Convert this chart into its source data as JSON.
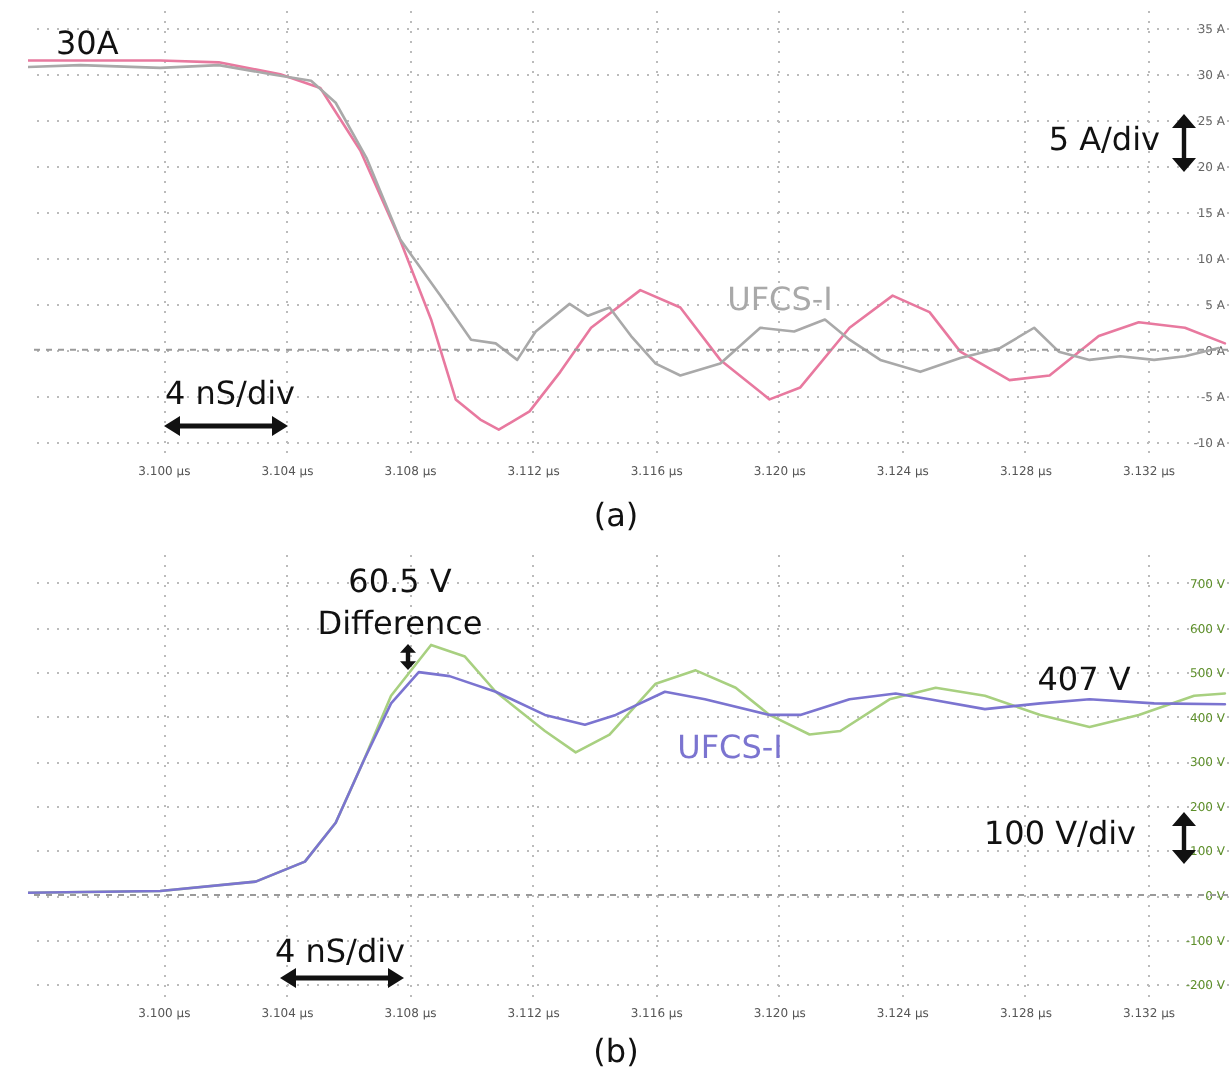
{
  "chart_data": [
    {
      "type": "line",
      "xlim": [
        3.0956,
        3.1346
      ],
      "xticks": [
        {
          "value": 3.1,
          "label": "3.100 µs"
        },
        {
          "value": 3.104,
          "label": "3.104 µs"
        },
        {
          "value": 3.108,
          "label": "3.108 µs"
        },
        {
          "value": 3.112,
          "label": "3.112 µs"
        },
        {
          "value": 3.116,
          "label": "3.116 µs"
        },
        {
          "value": 3.12,
          "label": "3.120 µs"
        },
        {
          "value": 3.124,
          "label": "3.124 µs"
        },
        {
          "value": 3.128,
          "label": "3.128 µs"
        },
        {
          "value": 3.132,
          "label": "3.132 µs"
        }
      ],
      "ylim": [
        -12,
        37
      ],
      "yticks": [
        {
          "value": -10,
          "label": "-10 A"
        },
        {
          "value": -5,
          "label": "-5 A"
        },
        {
          "value": 0,
          "label": "0 A"
        },
        {
          "value": 5,
          "label": "5 A"
        },
        {
          "value": 10,
          "label": "10 A"
        },
        {
          "value": 15,
          "label": "15 A"
        },
        {
          "value": 20,
          "label": "20 A"
        },
        {
          "value": 25,
          "label": "25 A"
        },
        {
          "value": 30,
          "label": "30 A"
        },
        {
          "value": 35,
          "label": "35 A"
        }
      ],
      "grid": true,
      "ref_lines": [
        {
          "axis": "y",
          "value": 0,
          "color": "#9a9a9a",
          "line_style": "dashed"
        }
      ],
      "annotations": [
        "30A",
        "5 A/div",
        "4 nS/div",
        "(a)"
      ],
      "series": [
        {
          "color": "#e8799f",
          "x": [
            3.0956,
            3.0973,
            3.0999,
            3.1018,
            3.1038,
            3.1051,
            3.1064,
            3.1077,
            3.1087,
            3.1095,
            3.1103,
            3.1109,
            3.1119,
            3.1129,
            3.1139,
            3.1155,
            3.1168,
            3.1181,
            3.1197,
            3.1207,
            3.1223,
            3.1237,
            3.1249,
            3.1259,
            3.1275,
            3.1288,
            3.1304,
            3.1317,
            3.1332,
            3.1345
          ],
          "values": [
            31.5,
            31.5,
            31.5,
            31.3,
            30,
            28.5,
            21.7,
            11.9,
            3.3,
            -5.4,
            -7.6,
            -8.7,
            -6.7,
            -2.4,
            2.4,
            6.5,
            4.6,
            -1.1,
            -5.4,
            -4.1,
            2.4,
            5.9,
            4.1,
            -0.2,
            -3.3,
            -2.8,
            1.5,
            3,
            2.4,
            0.7
          ]
        },
        {
          "name": "UFCS-I",
          "color": "#a9a9a9",
          "x": [
            3.0956,
            3.0973,
            3.0999,
            3.1018,
            3.1035,
            3.1048,
            3.1056,
            3.1066,
            3.1077,
            3.109,
            3.11,
            3.1108,
            3.1115,
            3.1121,
            3.1132,
            3.1138,
            3.1145,
            3.1152,
            3.116,
            3.1168,
            3.1181,
            3.1194,
            3.1205,
            3.1215,
            3.1223,
            3.1233,
            3.1246,
            3.1259,
            3.1272,
            3.1283,
            3.1291,
            3.1301,
            3.1311,
            3.1322,
            3.1332,
            3.1343
          ],
          "values": [
            30.8,
            31,
            30.7,
            31,
            30,
            29.3,
            26.9,
            20.9,
            12,
            5.9,
            1.1,
            0.7,
            -1.1,
            2,
            5,
            3.7,
            4.6,
            1.5,
            -1.5,
            -2.8,
            -1.5,
            2.4,
            2,
            3.3,
            1.1,
            -1.1,
            -2.4,
            -0.9,
            0.2,
            2.4,
            -0.2,
            -1.1,
            -0.7,
            -1.1,
            -0.7,
            0.2
          ]
        }
      ]
    },
    {
      "type": "line",
      "xlim": [
        3.0956,
        3.1346
      ],
      "xticks": [
        {
          "value": 3.1,
          "label": "3.100 µs"
        },
        {
          "value": 3.104,
          "label": "3.104 µs"
        },
        {
          "value": 3.108,
          "label": "3.108 µs"
        },
        {
          "value": 3.112,
          "label": "3.112 µs"
        },
        {
          "value": 3.116,
          "label": "3.116 µs"
        },
        {
          "value": 3.12,
          "label": "3.120 µs"
        },
        {
          "value": 3.124,
          "label": "3.124 µs"
        },
        {
          "value": 3.128,
          "label": "3.128 µs"
        },
        {
          "value": 3.132,
          "label": "3.132 µs"
        }
      ],
      "ylim": [
        -240,
        765
      ],
      "yticks": [
        {
          "value": -200,
          "label": "-200 V"
        },
        {
          "value": -100,
          "label": "-100 V"
        },
        {
          "value": 0,
          "label": "0 V"
        },
        {
          "value": 100,
          "label": "100 V"
        },
        {
          "value": 200,
          "label": "200 V"
        },
        {
          "value": 300,
          "label": "300 V"
        },
        {
          "value": 400,
          "label": "400 V"
        },
        {
          "value": 500,
          "label": "500 V"
        },
        {
          "value": 600,
          "label": "600 V"
        },
        {
          "value": 700,
          "label": "700 V"
        }
      ],
      "grid": true,
      "ref_lines": [
        {
          "axis": "y",
          "value": 0,
          "color": "#9a9a9a",
          "line_style": "dashed"
        }
      ],
      "annotations": [
        "60.5 V",
        "Difference",
        "407 V",
        "100 V/div",
        "4 nS/div",
        "(b)"
      ],
      "series": [
        {
          "color": "#a8d080",
          "x": [
            3.0956,
            3.0999,
            3.103,
            3.1046,
            3.1056,
            3.1065,
            3.1074,
            3.1087,
            3.1098,
            3.1108,
            3.1124,
            3.1134,
            3.1145,
            3.116,
            3.1173,
            3.1186,
            3.1197,
            3.121,
            3.122,
            3.1236,
            3.1251,
            3.1267,
            3.1285,
            3.1301,
            3.1317,
            3.1335,
            3.1345
          ],
          "values": [
            5,
            9,
            30,
            75,
            162,
            300,
            447,
            561,
            535,
            456,
            368,
            320,
            360,
            474,
            504,
            465,
            404,
            360,
            368,
            439,
            465,
            447,
            404,
            377,
            404,
            447,
            452
          ]
        },
        {
          "name": "UFCS-I",
          "color": "#7b74d0",
          "x": [
            3.0956,
            3.0999,
            3.103,
            3.1046,
            3.1056,
            3.1065,
            3.1074,
            3.1083,
            3.1093,
            3.1108,
            3.1124,
            3.1137,
            3.1147,
            3.1163,
            3.1176,
            3.1197,
            3.1207,
            3.1223,
            3.1238,
            3.1249,
            3.1267,
            3.1285,
            3.1301,
            3.1322,
            3.1345
          ],
          "values": [
            5,
            9,
            30,
            75,
            162,
            300,
            430,
            500,
            491,
            456,
            404,
            382,
            404,
            456,
            439,
            404,
            404,
            439,
            452,
            439,
            417,
            430,
            439,
            430,
            428
          ]
        }
      ]
    }
  ]
}
